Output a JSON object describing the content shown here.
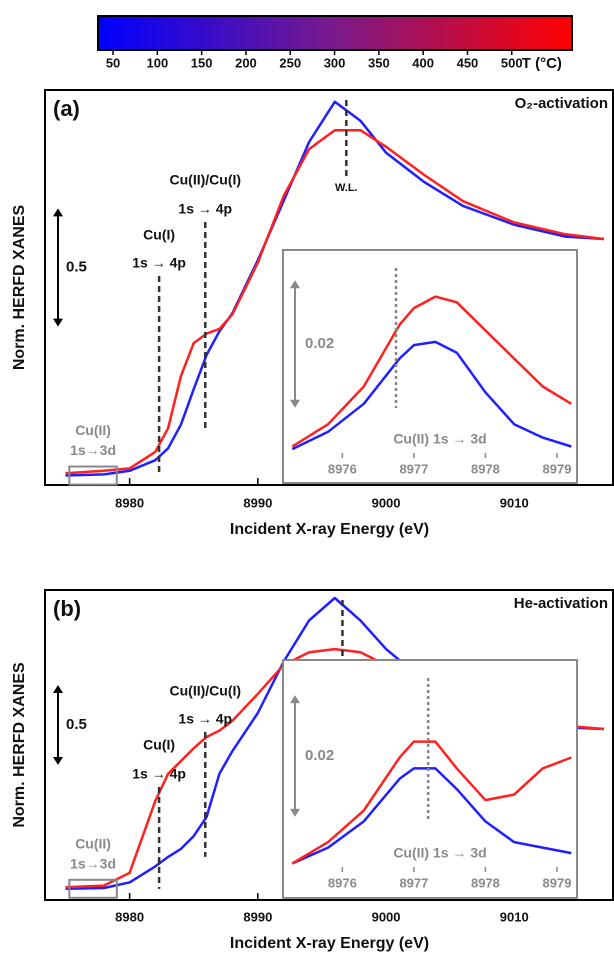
{
  "colorbar": {
    "clim": [
      33,
      568
    ],
    "ticks": [
      50,
      100,
      150,
      200,
      250,
      300,
      350,
      400,
      450,
      500
    ],
    "label": "T (°C)",
    "colors": [
      "#0000ff",
      "#7a1a8a",
      "#ff0000"
    ]
  },
  "chart_data": [
    {
      "type": "line",
      "title": "(a)",
      "subtitle": "O₂-activation",
      "ylabel": "Norm. HERFD XANES",
      "xlabel": "Incident X-ray Energy (eV)",
      "xlim": [
        8973.4,
        9017.7
      ],
      "xticks": [
        8980,
        8990,
        9000,
        9010
      ],
      "ylim": [
        -0.04,
        1.63
      ],
      "x": [
        8975,
        8978,
        8980,
        8982,
        8983,
        8984,
        8985,
        8986,
        8987,
        8988,
        8990,
        8992,
        8994,
        8996,
        8998,
        9000,
        9003,
        9006,
        9010,
        9014,
        9017
      ],
      "series": [
        {
          "color": "#1f1fff",
          "values": [
            0.0,
            0.005,
            0.02,
            0.065,
            0.115,
            0.215,
            0.365,
            0.51,
            0.61,
            0.685,
            0.91,
            1.16,
            1.41,
            1.58,
            1.5,
            1.365,
            1.24,
            1.14,
            1.06,
            1.01,
            1.0
          ]
        },
        {
          "color": "#ff2020",
          "values": [
            0.01,
            0.02,
            0.03,
            0.1,
            0.2,
            0.42,
            0.56,
            0.6,
            0.62,
            0.68,
            0.9,
            1.18,
            1.38,
            1.46,
            1.46,
            1.39,
            1.27,
            1.16,
            1.07,
            1.02,
            1.0
          ]
        }
      ],
      "scale_bar": 0.5,
      "markers": [
        {
          "x": 8982.3,
          "label": [
            "Cu(I)",
            "1s → 4p"
          ]
        },
        {
          "x": 8985.9,
          "label": [
            "Cu(II)/Cu(I)",
            "1s → 4p"
          ]
        },
        {
          "x": 8996.9,
          "label": [
            "W.L."
          ]
        }
      ],
      "box": {
        "xlim": [
          8975.3,
          8979
        ],
        "label": [
          "Cu(II)",
          "1s→3d"
        ]
      },
      "inset": {
        "type": "line",
        "xlim": [
          8975.17,
          8979.28
        ],
        "xticks": [
          8976,
          8977,
          8978,
          8979
        ],
        "ylim": [
          0,
          0.0326
        ],
        "x": [
          8975.3,
          8975.8,
          8976.3,
          8976.8,
          8977.0,
          8977.3,
          8977.6,
          8978.0,
          8978.4,
          8978.8,
          8979.2
        ],
        "series": [
          {
            "color": "#1f1fff",
            "values": [
              0.0014,
              0.0041,
              0.0085,
              0.0156,
              0.0177,
              0.0182,
              0.0165,
              0.0103,
              0.0053,
              0.0032,
              0.0018
            ]
          },
          {
            "color": "#ff2020",
            "values": [
              0.0018,
              0.0053,
              0.0112,
              0.0209,
              0.0235,
              0.0253,
              0.0244,
              0.02,
              0.0156,
              0.0112,
              0.0085
            ]
          }
        ],
        "scale_bar": 0.02,
        "marker": {
          "x": 8976.75,
          "label": "Cu(II) 1s → 3d"
        }
      }
    },
    {
      "type": "line",
      "title": "(b)",
      "subtitle": "He-activation",
      "ylabel": "Norm. HERFD XANES",
      "xlabel": "Incident X-ray Energy (eV)",
      "xlim": [
        8973.4,
        9017.7
      ],
      "xticks": [
        8980,
        8990,
        9000,
        9010
      ],
      "ylim": [
        -0.07,
        1.87
      ],
      "x": [
        8975,
        8978,
        8980,
        8982,
        8983,
        8984,
        8985,
        8986,
        8987,
        8988,
        8990,
        8992,
        8994,
        8996,
        8998,
        9000,
        9003,
        9006,
        9010,
        9014,
        9017
      ],
      "series": [
        {
          "color": "#1f1fff",
          "values": [
            0.0,
            0.005,
            0.04,
            0.14,
            0.2,
            0.25,
            0.33,
            0.45,
            0.72,
            0.86,
            1.1,
            1.42,
            1.68,
            1.82,
            1.68,
            1.5,
            1.3,
            1.15,
            1.05,
            1.01,
            1.0
          ]
        },
        {
          "color": "#ff2020",
          "values": [
            0.01,
            0.02,
            0.1,
            0.55,
            0.72,
            0.8,
            0.88,
            0.95,
            0.99,
            1.05,
            1.22,
            1.4,
            1.48,
            1.5,
            1.48,
            1.4,
            1.28,
            1.16,
            1.07,
            1.02,
            1.0
          ]
        }
      ],
      "scale_bar": 0.5,
      "markers": [
        {
          "x": 8982.3,
          "label": [
            "Cu(I)",
            "1s → 4p"
          ]
        },
        {
          "x": 8985.9,
          "label": [
            "Cu(II)/Cu(I)",
            "1s → 4p"
          ]
        },
        {
          "x": 8996.6,
          "label": [
            "W.L."
          ]
        }
      ],
      "box": {
        "xlim": [
          8975.3,
          8979
        ],
        "label": [
          "Cu(II)",
          "1s→3d"
        ]
      },
      "inset": {
        "type": "line",
        "xlim": [
          8975.17,
          8979.28
        ],
        "xticks": [
          8976,
          8977,
          8978,
          8979
        ],
        "ylim": [
          0,
          0.0348
        ],
        "x": [
          8975.3,
          8975.8,
          8976.3,
          8976.8,
          8977.0,
          8977.3,
          8977.6,
          8978.0,
          8978.4,
          8978.8,
          8979.2
        ],
        "series": [
          {
            "color": "#1f1fff",
            "values": [
              0.0014,
              0.004,
              0.0083,
              0.0153,
              0.017,
              0.017,
              0.0136,
              0.0083,
              0.0049,
              0.004,
              0.0031
            ]
          },
          {
            "color": "#ff2020",
            "values": [
              0.0014,
              0.0049,
              0.0101,
              0.0188,
              0.0214,
              0.0214,
              0.017,
              0.0118,
              0.0127,
              0.017,
              0.0188
            ]
          }
        ],
        "scale_bar": 0.02,
        "marker": {
          "x": 8977.2,
          "label": "Cu(II) 1s → 3d"
        }
      }
    }
  ]
}
